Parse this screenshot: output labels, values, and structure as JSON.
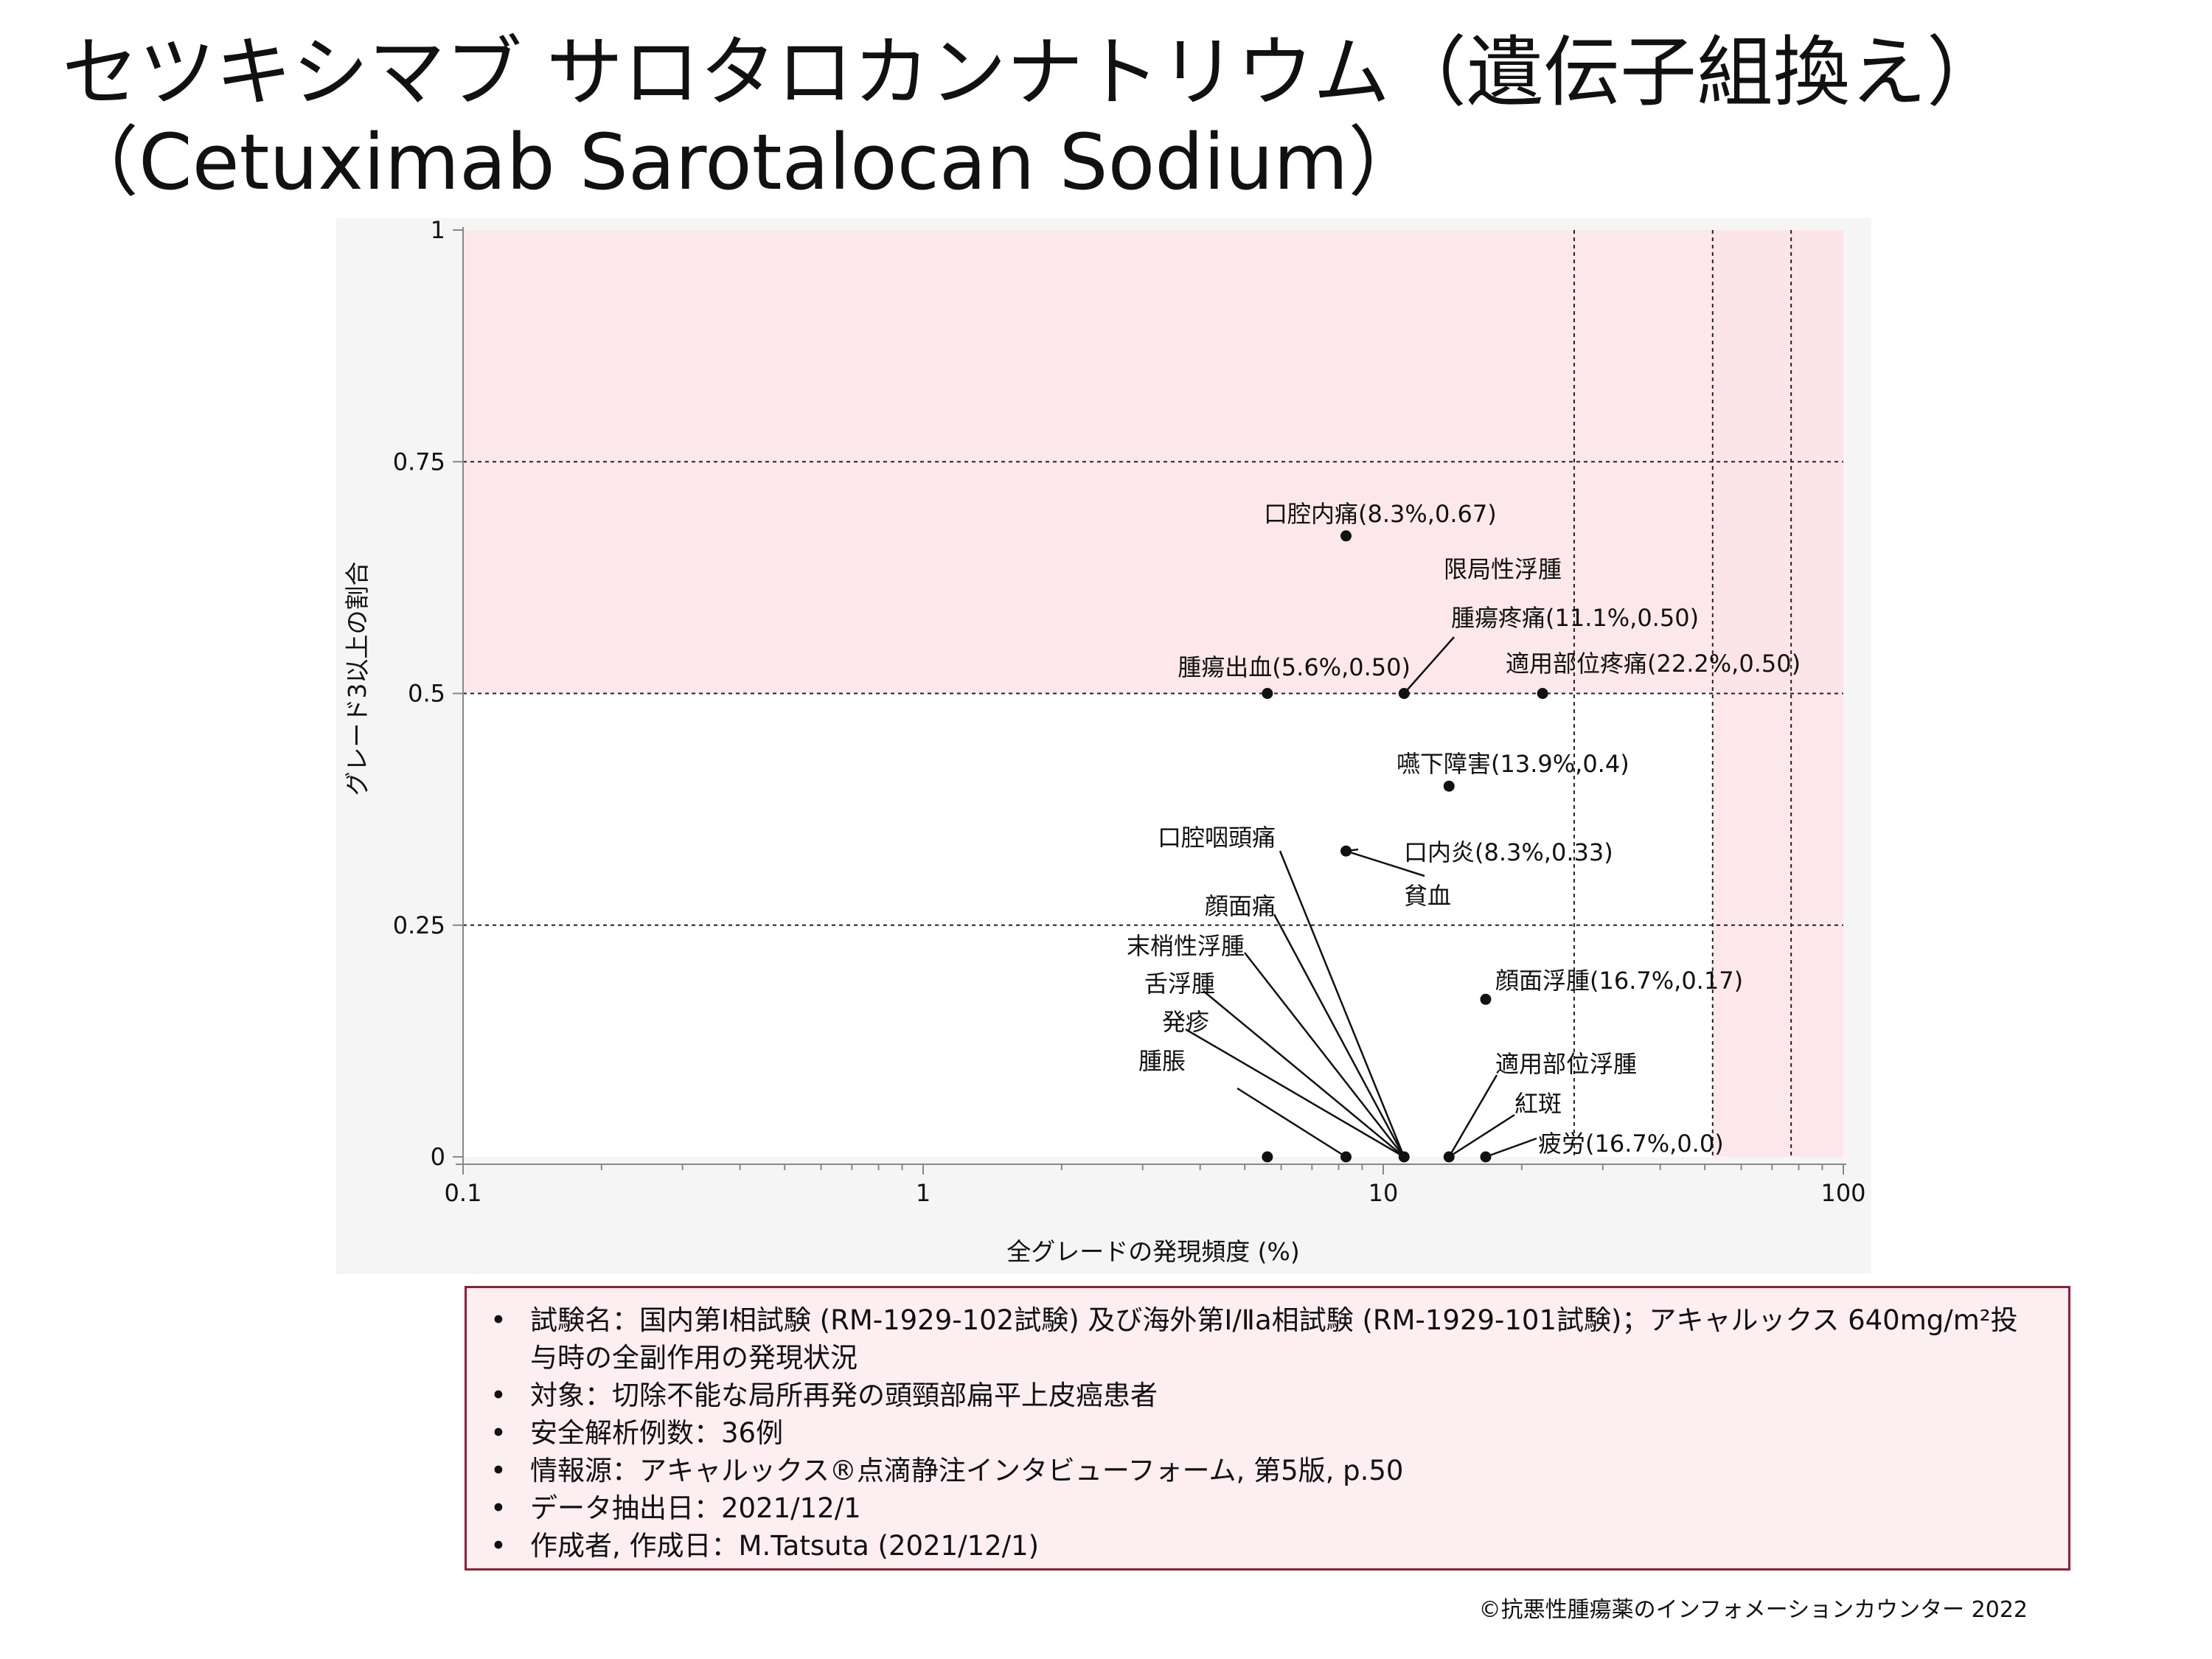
{
  "title": {
    "line1": "セツキシマブ サロタロカンナトリウム（遺伝子組換え）",
    "line2": "（Cetuximab Sarotalocan Sodium）"
  },
  "chart_data": {
    "type": "scatter",
    "xlabel": "全グレードの発現頻度 (%)",
    "ylabel": "グレード3以上の割合",
    "xscale": "log",
    "xlim": [
      0.1,
      100
    ],
    "ylim": [
      0,
      1
    ],
    "x_ticks": [
      "0.1",
      "1",
      "10",
      "100"
    ],
    "y_ticks": [
      "0",
      "0.25",
      "0.5",
      "0.75",
      "1"
    ],
    "shaded_regions": [
      {
        "x_from": 0.1,
        "x_to": 100,
        "y_from": 0.5,
        "y_to": 1,
        "color": "#fce4e8"
      },
      {
        "x_from": 52,
        "x_to": 100,
        "y_from": 0,
        "y_to": 1,
        "color": "#fce4e8"
      }
    ],
    "reference_lines": {
      "x": [
        26,
        52,
        77
      ],
      "y": [
        0.25,
        0.5,
        0.75
      ]
    },
    "points": [
      {
        "x": 8.3,
        "y": 0.67
      },
      {
        "x": 5.6,
        "y": 0.5
      },
      {
        "x": 11.1,
        "y": 0.5
      },
      {
        "x": 22.2,
        "y": 0.5
      },
      {
        "x": 13.9,
        "y": 0.4
      },
      {
        "x": 8.3,
        "y": 0.33
      },
      {
        "x": 16.7,
        "y": 0.17
      },
      {
        "x": 5.6,
        "y": 0.0
      },
      {
        "x": 8.3,
        "y": 0.0
      },
      {
        "x": 11.1,
        "y": 0.0
      },
      {
        "x": 13.9,
        "y": 0.0
      },
      {
        "x": 16.7,
        "y": 0.0
      }
    ],
    "annotations": [
      {
        "text": "口腔内痛(8.3%,0.67)",
        "x": 8.3,
        "y": 0.67
      },
      {
        "text": "限局性浮腫",
        "x": 11.1,
        "y": 0.5
      },
      {
        "text": "腫瘍疼痛(11.1%,0.50)",
        "x": 11.1,
        "y": 0.5
      },
      {
        "text": "腫瘍出血(5.6%,0.50)",
        "x": 5.6,
        "y": 0.5
      },
      {
        "text": "適用部位疼痛(22.2%,0.50)",
        "x": 22.2,
        "y": 0.5
      },
      {
        "text": "嚥下障害(13.9%,0.4)",
        "x": 13.9,
        "y": 0.4
      },
      {
        "text": "口腔咽頭痛",
        "x": 11.1,
        "y": 0.0
      },
      {
        "text": "口内炎(8.3%,0.33)",
        "x": 8.3,
        "y": 0.33
      },
      {
        "text": "貧血",
        "x": 8.3,
        "y": 0.33
      },
      {
        "text": "顔面痛",
        "x": 11.1,
        "y": 0.0
      },
      {
        "text": "末梢性浮腫",
        "x": 11.1,
        "y": 0.0
      },
      {
        "text": "舌浮腫",
        "x": 11.1,
        "y": 0.0
      },
      {
        "text": "発疹",
        "x": 11.1,
        "y": 0.0
      },
      {
        "text": "腫脹",
        "x": 8.3,
        "y": 0.0
      },
      {
        "text": "顔面浮腫(16.7%,0.17)",
        "x": 16.7,
        "y": 0.17
      },
      {
        "text": "適用部位浮腫",
        "x": 13.9,
        "y": 0.0
      },
      {
        "text": "紅斑",
        "x": 13.9,
        "y": 0.0
      },
      {
        "text": "疲労(16.7%,0.0)",
        "x": 16.7,
        "y": 0.0
      }
    ]
  },
  "info": {
    "items": [
      "試験名：国内第Ⅰ相試験 (RM-1929-102試験) 及び海外第Ⅰ/Ⅱa相試験 (RM-1929-101試験)；アキャルックス 640mg/m²投与時の全副作用の発現状況",
      "対象：切除不能な局所再発の頭頸部扁平上皮癌患者",
      "安全解析例数：36例",
      "情報源：アキャルックス®点滴静注インタビューフォーム, 第5版, p.50",
      "データ抽出日：2021/12/1",
      "作成者, 作成日：M.Tatsuta (2021/12/1)"
    ]
  },
  "footer": {
    "copyright": "©抗悪性腫瘍薬のインフォメーションカウンター 2022"
  }
}
